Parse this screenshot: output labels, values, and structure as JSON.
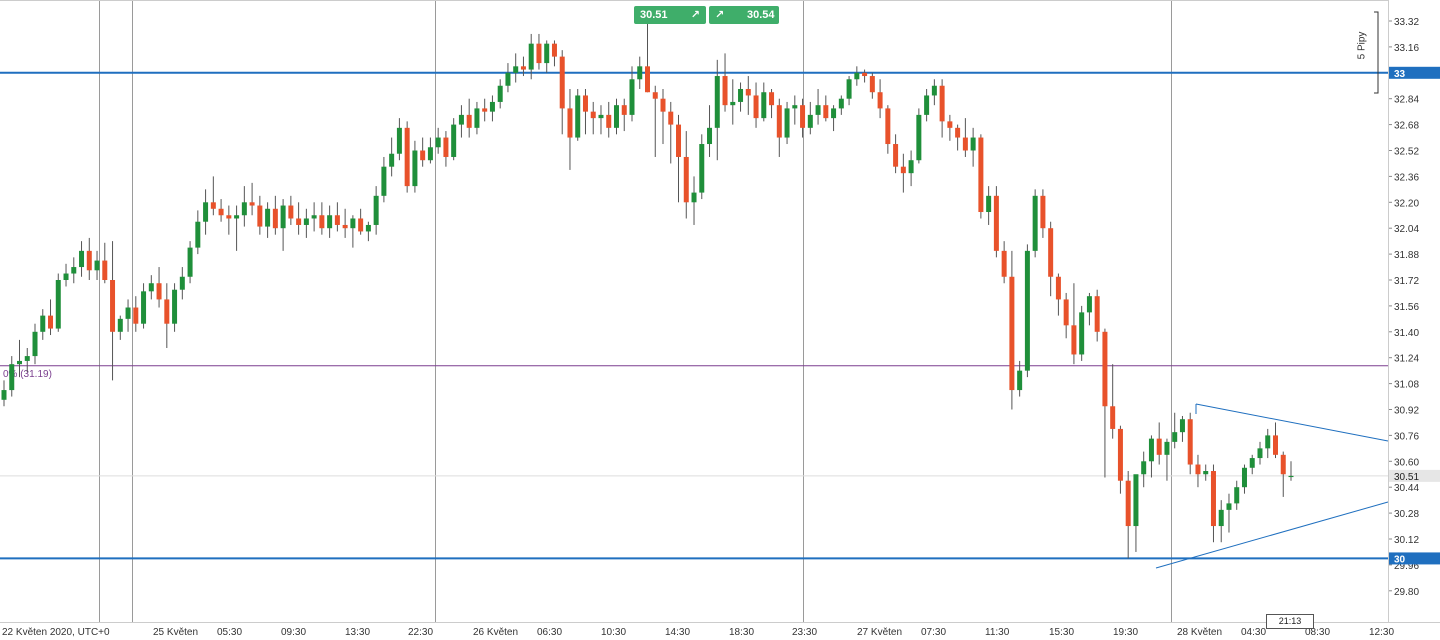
{
  "chart_data": {
    "type": "candlestick",
    "symbol_note": "",
    "y_range": [
      29.7,
      33.4
    ],
    "y_ticks": [
      "33.32",
      "33.16",
      "33.00",
      "32.84",
      "32.68",
      "32.52",
      "32.36",
      "32.20",
      "32.04",
      "31.88",
      "31.72",
      "31.56",
      "31.40",
      "31.24",
      "31.08",
      "30.92",
      "30.76",
      "30.60",
      "30.44",
      "30.28",
      "30.12",
      "29.96",
      "29.80"
    ],
    "x_ticks": [
      "22 Květen 2020, UTC+0",
      "25 Květen",
      "05:30",
      "09:30",
      "13:30",
      "22:30",
      "26 Květen",
      "06:30",
      "10:30",
      "14:30",
      "18:30",
      "23:30",
      "27 Květen",
      "07:30",
      "11:30",
      "15:30",
      "19:30",
      "28 Květen",
      "04:30",
      "08:30",
      "12:30"
    ],
    "horizontal_levels": [
      {
        "label": "33",
        "value": 33.0,
        "color": "#1f6fbf"
      },
      {
        "label": "30",
        "value": 30.0,
        "color": "#1f6fbf"
      }
    ],
    "fib_level": {
      "label": "0% (31.19)",
      "value": 31.19,
      "color": "#7b3f8f"
    },
    "current_price": {
      "label": "30.51",
      "value": 30.51
    },
    "trade": {
      "sell": "30.51",
      "buy": "30.54"
    },
    "pips_label": "5 Pipy",
    "time_badge": "21:13",
    "colors": {
      "up": "#1f8f3a",
      "down": "#e8522b",
      "wick": "#555555",
      "level": "#1f6fbf",
      "fib": "#7b3f8f",
      "triangle": "#1f6fbf",
      "grid": "#9a9a9a"
    },
    "candles": [
      [
        30.98,
        31.1,
        30.94,
        31.04
      ],
      [
        31.04,
        31.25,
        31.0,
        31.2
      ],
      [
        31.2,
        31.35,
        31.12,
        31.22
      ],
      [
        31.22,
        31.3,
        31.15,
        31.25
      ],
      [
        31.25,
        31.45,
        31.2,
        31.4
      ],
      [
        31.4,
        31.54,
        31.35,
        31.5
      ],
      [
        31.5,
        31.6,
        31.38,
        31.42
      ],
      [
        31.42,
        31.76,
        31.4,
        31.72
      ],
      [
        31.72,
        31.82,
        31.68,
        31.76
      ],
      [
        31.76,
        31.86,
        31.7,
        31.8
      ],
      [
        31.8,
        31.96,
        31.74,
        31.9
      ],
      [
        31.9,
        31.98,
        31.72,
        31.78
      ],
      [
        31.78,
        31.9,
        31.72,
        31.84
      ],
      [
        31.84,
        31.95,
        31.7,
        31.72
      ],
      [
        31.72,
        31.96,
        31.1,
        31.4
      ],
      [
        31.4,
        31.5,
        31.35,
        31.48
      ],
      [
        31.48,
        31.6,
        31.4,
        31.55
      ],
      [
        31.55,
        31.62,
        31.4,
        31.45
      ],
      [
        31.45,
        31.7,
        31.42,
        31.65
      ],
      [
        31.65,
        31.75,
        31.6,
        31.7
      ],
      [
        31.7,
        31.8,
        31.55,
        31.6
      ],
      [
        31.6,
        31.7,
        31.3,
        31.45
      ],
      [
        31.45,
        31.7,
        31.4,
        31.66
      ],
      [
        31.66,
        31.8,
        31.6,
        31.74
      ],
      [
        31.74,
        31.96,
        31.7,
        31.92
      ],
      [
        31.92,
        32.15,
        31.88,
        32.08
      ],
      [
        32.08,
        32.28,
        32.0,
        32.2
      ],
      [
        32.2,
        32.36,
        32.12,
        32.16
      ],
      [
        32.16,
        32.22,
        32.08,
        32.12
      ],
      [
        32.12,
        32.18,
        32.0,
        32.1
      ],
      [
        32.1,
        32.18,
        31.9,
        32.12
      ],
      [
        32.12,
        32.3,
        32.05,
        32.2
      ],
      [
        32.2,
        32.32,
        32.12,
        32.18
      ],
      [
        32.18,
        32.24,
        32.0,
        32.05
      ],
      [
        32.05,
        32.2,
        31.98,
        32.16
      ],
      [
        32.16,
        32.24,
        32.0,
        32.04
      ],
      [
        32.04,
        32.22,
        31.9,
        32.18
      ],
      [
        32.18,
        32.24,
        32.06,
        32.1
      ],
      [
        32.1,
        32.2,
        32.0,
        32.06
      ],
      [
        32.06,
        32.16,
        31.98,
        32.1
      ],
      [
        32.1,
        32.2,
        32.02,
        32.12
      ],
      [
        32.12,
        32.2,
        32.0,
        32.04
      ],
      [
        32.04,
        32.18,
        31.98,
        32.12
      ],
      [
        32.12,
        32.2,
        32.02,
        32.06
      ],
      [
        32.06,
        32.16,
        31.98,
        32.04
      ],
      [
        32.04,
        32.12,
        31.92,
        32.1
      ],
      [
        32.1,
        32.16,
        32.0,
        32.02
      ],
      [
        32.02,
        32.08,
        31.96,
        32.06
      ],
      [
        32.06,
        32.3,
        32.0,
        32.24
      ],
      [
        32.24,
        32.48,
        32.2,
        32.42
      ],
      [
        32.42,
        32.6,
        32.36,
        32.5
      ],
      [
        32.5,
        32.72,
        32.46,
        32.66
      ],
      [
        32.66,
        32.7,
        32.26,
        32.3
      ],
      [
        32.3,
        32.58,
        32.26,
        32.52
      ],
      [
        32.52,
        32.6,
        32.42,
        32.46
      ],
      [
        32.46,
        32.6,
        32.44,
        32.54
      ],
      [
        32.54,
        32.66,
        32.5,
        32.6
      ],
      [
        32.6,
        32.64,
        32.42,
        32.48
      ],
      [
        32.48,
        32.72,
        32.46,
        32.68
      ],
      [
        32.68,
        32.8,
        32.6,
        32.74
      ],
      [
        32.74,
        32.84,
        32.6,
        32.66
      ],
      [
        32.66,
        32.82,
        32.62,
        32.78
      ],
      [
        32.78,
        32.84,
        32.7,
        32.76
      ],
      [
        32.76,
        32.86,
        32.7,
        32.82
      ],
      [
        32.82,
        32.96,
        32.78,
        32.92
      ],
      [
        32.92,
        33.06,
        32.88,
        33.0
      ],
      [
        33.0,
        33.12,
        32.94,
        33.04
      ],
      [
        33.04,
        33.1,
        32.98,
        33.02
      ],
      [
        33.02,
        33.24,
        32.96,
        33.18
      ],
      [
        33.18,
        33.24,
        33.02,
        33.06
      ],
      [
        33.06,
        33.2,
        33.0,
        33.18
      ],
      [
        33.18,
        33.2,
        33.04,
        33.1
      ],
      [
        33.1,
        33.14,
        32.62,
        32.78
      ],
      [
        32.78,
        32.9,
        32.4,
        32.6
      ],
      [
        32.6,
        32.9,
        32.58,
        32.86
      ],
      [
        32.86,
        32.9,
        32.62,
        32.76
      ],
      [
        32.76,
        32.82,
        32.62,
        32.72
      ],
      [
        32.72,
        32.8,
        32.62,
        32.74
      ],
      [
        32.74,
        32.82,
        32.6,
        32.66
      ],
      [
        32.66,
        32.84,
        32.62,
        32.8
      ],
      [
        32.8,
        32.84,
        32.64,
        32.74
      ],
      [
        32.74,
        33.04,
        32.7,
        32.96
      ],
      [
        32.96,
        33.1,
        32.9,
        33.04
      ],
      [
        33.04,
        33.36,
        32.88,
        32.88
      ],
      [
        32.88,
        32.92,
        32.48,
        32.84
      ],
      [
        32.84,
        32.9,
        32.56,
        32.76
      ],
      [
        32.76,
        32.82,
        32.44,
        32.68
      ],
      [
        32.68,
        32.74,
        32.2,
        32.48
      ],
      [
        32.48,
        32.64,
        32.1,
        32.2
      ],
      [
        32.2,
        32.36,
        32.06,
        32.26
      ],
      [
        32.26,
        32.62,
        32.22,
        32.56
      ],
      [
        32.56,
        32.8,
        32.48,
        32.66
      ],
      [
        32.66,
        33.08,
        32.46,
        32.98
      ],
      [
        32.98,
        33.12,
        32.76,
        32.8
      ],
      [
        32.8,
        32.96,
        32.68,
        32.82
      ],
      [
        32.82,
        32.94,
        32.76,
        32.9
      ],
      [
        32.9,
        32.98,
        32.74,
        32.86
      ],
      [
        32.86,
        32.94,
        32.66,
        32.72
      ],
      [
        32.72,
        32.94,
        32.7,
        32.88
      ],
      [
        32.88,
        32.9,
        32.72,
        32.8
      ],
      [
        32.8,
        32.84,
        32.48,
        32.6
      ],
      [
        32.6,
        32.82,
        32.56,
        32.78
      ],
      [
        32.78,
        32.86,
        32.68,
        32.8
      ],
      [
        32.8,
        32.84,
        32.6,
        32.66
      ],
      [
        32.66,
        32.82,
        32.62,
        32.74
      ],
      [
        32.74,
        32.9,
        32.68,
        32.8
      ],
      [
        32.8,
        32.86,
        32.7,
        32.72
      ],
      [
        32.72,
        32.8,
        32.64,
        32.78
      ],
      [
        32.78,
        32.86,
        32.74,
        32.84
      ],
      [
        32.84,
        32.98,
        32.8,
        32.96
      ],
      [
        32.96,
        33.04,
        32.92,
        33.0
      ],
      [
        33.0,
        33.02,
        32.94,
        32.98
      ],
      [
        32.98,
        33.0,
        32.84,
        32.88
      ],
      [
        32.88,
        32.96,
        32.72,
        32.78
      ],
      [
        32.78,
        32.8,
        32.5,
        32.56
      ],
      [
        32.56,
        32.62,
        32.38,
        32.42
      ],
      [
        32.42,
        32.5,
        32.26,
        32.38
      ],
      [
        32.38,
        32.52,
        32.3,
        32.46
      ],
      [
        32.46,
        32.78,
        32.44,
        32.74
      ],
      [
        32.74,
        32.9,
        32.7,
        32.86
      ],
      [
        32.86,
        32.96,
        32.8,
        32.92
      ],
      [
        32.92,
        32.96,
        32.6,
        32.7
      ],
      [
        32.7,
        32.74,
        32.58,
        32.66
      ],
      [
        32.66,
        32.68,
        32.52,
        32.6
      ],
      [
        32.6,
        32.72,
        32.48,
        32.52
      ],
      [
        32.52,
        32.66,
        32.42,
        32.6
      ],
      [
        32.6,
        32.62,
        32.1,
        32.14
      ],
      [
        32.14,
        32.3,
        32.06,
        32.24
      ],
      [
        32.24,
        32.3,
        31.86,
        31.9
      ],
      [
        31.9,
        31.96,
        31.7,
        31.74
      ],
      [
        31.74,
        31.9,
        30.92,
        31.04
      ],
      [
        31.04,
        31.22,
        31.0,
        31.16
      ],
      [
        31.16,
        31.94,
        31.12,
        31.9
      ],
      [
        31.9,
        32.28,
        31.86,
        32.24
      ],
      [
        32.24,
        32.28,
        31.98,
        32.04
      ],
      [
        32.04,
        32.08,
        31.62,
        31.74
      ],
      [
        31.74,
        31.76,
        31.5,
        31.6
      ],
      [
        31.6,
        31.64,
        31.36,
        31.44
      ],
      [
        31.44,
        31.7,
        31.2,
        31.26
      ],
      [
        31.26,
        31.56,
        31.22,
        31.52
      ],
      [
        31.52,
        31.64,
        31.44,
        31.62
      ],
      [
        31.62,
        31.66,
        31.34,
        31.4
      ],
      [
        31.4,
        31.42,
        30.5,
        30.94
      ],
      [
        30.94,
        31.2,
        30.74,
        30.8
      ],
      [
        30.8,
        30.82,
        30.4,
        30.48
      ],
      [
        30.48,
        30.54,
        30.0,
        30.2
      ],
      [
        30.2,
        30.5,
        30.04,
        30.52
      ],
      [
        30.52,
        30.66,
        30.44,
        30.6
      ],
      [
        30.6,
        30.76,
        30.5,
        30.74
      ],
      [
        30.74,
        30.84,
        30.58,
        30.64
      ],
      [
        30.64,
        30.74,
        30.48,
        30.72
      ],
      [
        30.72,
        30.9,
        30.68,
        30.78
      ],
      [
        30.78,
        30.88,
        30.72,
        30.86
      ],
      [
        30.86,
        30.9,
        30.52,
        30.58
      ],
      [
        30.58,
        30.64,
        30.44,
        30.52
      ],
      [
        30.52,
        30.58,
        30.48,
        30.54
      ],
      [
        30.54,
        30.58,
        30.1,
        30.2
      ],
      [
        30.2,
        30.36,
        30.1,
        30.3
      ],
      [
        30.3,
        30.4,
        30.16,
        30.34
      ],
      [
        30.34,
        30.48,
        30.3,
        30.44
      ],
      [
        30.44,
        30.58,
        30.4,
        30.56
      ],
      [
        30.56,
        30.64,
        30.52,
        30.62
      ],
      [
        30.62,
        30.72,
        30.58,
        30.68
      ],
      [
        30.68,
        30.8,
        30.62,
        30.76
      ],
      [
        30.76,
        30.84,
        30.62,
        30.64
      ],
      [
        30.64,
        30.66,
        30.38,
        30.52
      ],
      [
        30.51,
        30.6,
        30.48,
        30.51
      ]
    ]
  }
}
